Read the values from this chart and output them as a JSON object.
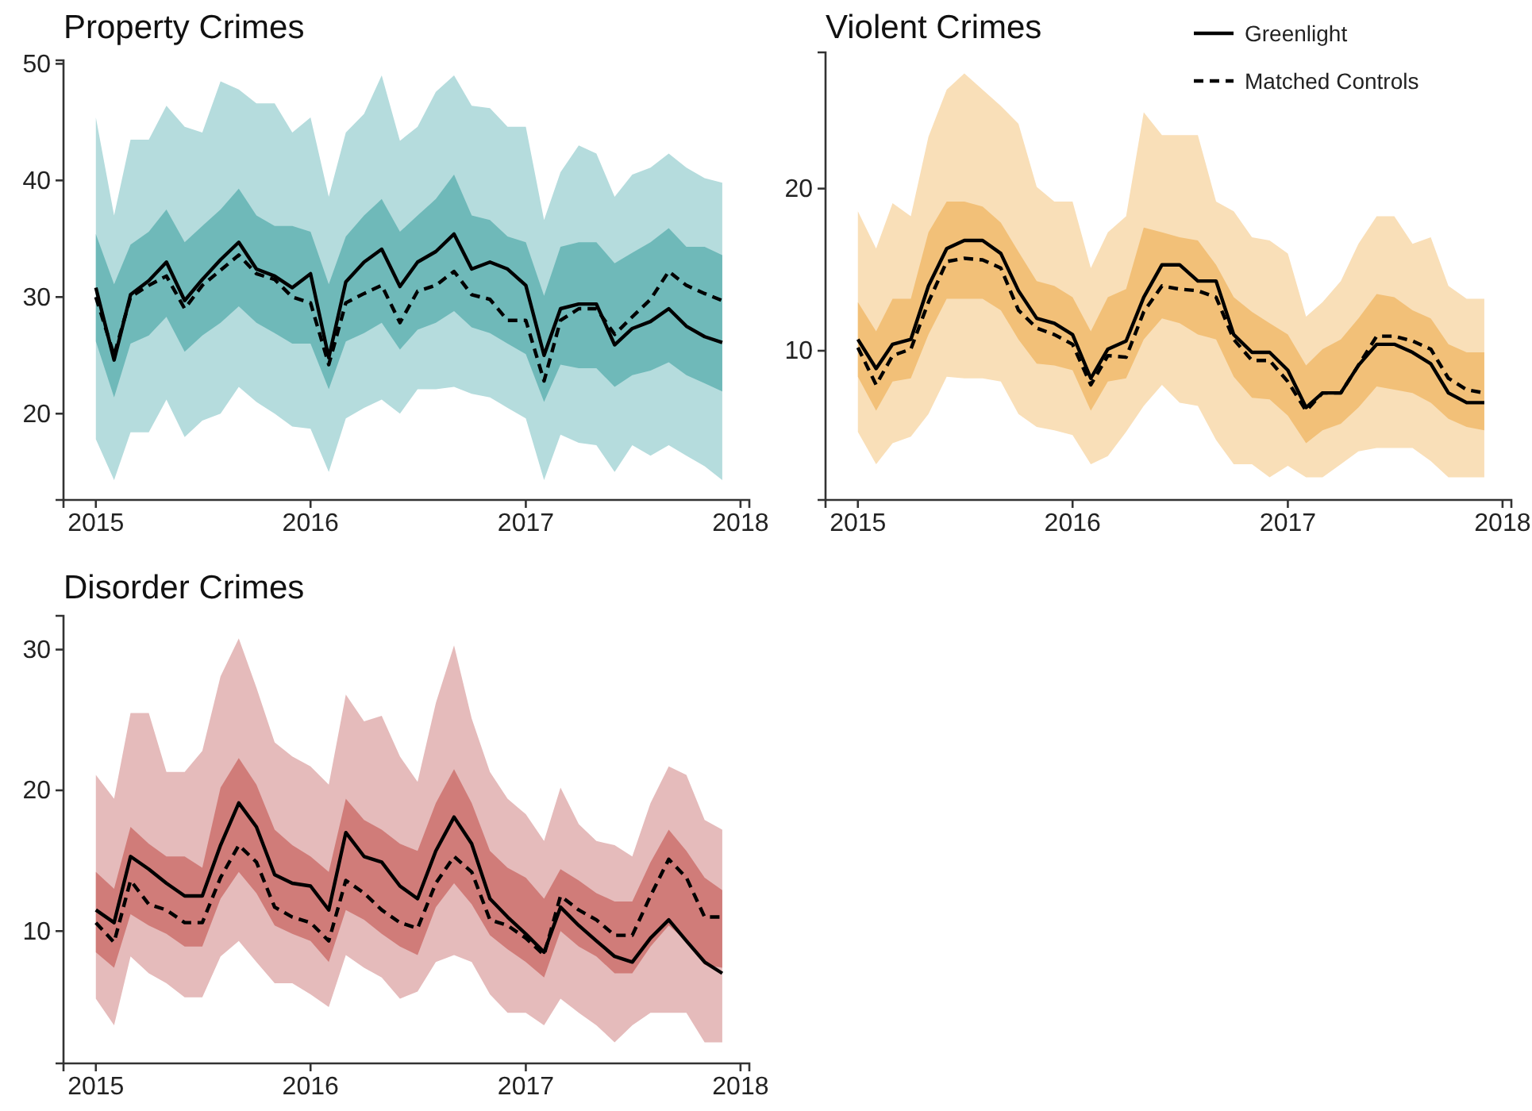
{
  "chart_data": [
    {
      "type": "line",
      "title": "Property Crimes",
      "x": [
        "2015-01",
        "2015-02",
        "2015-03",
        "2015-04",
        "2015-05",
        "2015-06",
        "2015-07",
        "2015-08",
        "2015-09",
        "2015-10",
        "2015-11",
        "2015-12",
        "2016-01",
        "2016-02",
        "2016-03",
        "2016-04",
        "2016-05",
        "2016-06",
        "2016-07",
        "2016-08",
        "2016-09",
        "2016-10",
        "2016-11",
        "2016-12",
        "2017-01",
        "2017-02",
        "2017-03",
        "2017-04",
        "2017-05",
        "2017-06",
        "2017-07",
        "2017-08",
        "2017-09",
        "2017-10",
        "2017-11",
        "2017-12"
      ],
      "xlim": [
        "2014-11-07",
        "2018-01-16"
      ],
      "xticks": [
        {
          "value": "2015",
          "label": "2015"
        },
        {
          "value": "2016",
          "label": "2016"
        },
        {
          "value": "2017",
          "label": "2017"
        },
        {
          "value": "2018",
          "label": "2018"
        }
      ],
      "colors": [
        "#b5dcdd",
        "#6fb9b9"
      ],
      "ylim": [
        12.6,
        50.3
      ],
      "yticks": [
        20,
        30,
        40,
        50
      ],
      "grid": false,
      "legend": false,
      "series": [
        {
          "type": "line",
          "color": "#000000",
          "line_style": "dashed",
          "values": [
            30.0,
            25.0,
            30.0,
            31.0,
            31.8,
            29.0,
            31.0,
            32.3,
            33.6,
            32.0,
            31.5,
            30.0,
            29.5,
            24.2,
            29.5,
            30.3,
            31.0,
            27.8,
            30.5,
            31.0,
            32.2,
            30.2,
            29.8,
            28.0,
            28.0,
            22.8,
            28.0,
            29.0,
            29.0,
            26.8,
            28.3,
            29.8,
            32.2,
            31.0,
            30.3,
            29.7
          ],
          "upper": [
            45.4,
            37.0,
            43.5,
            43.5,
            46.4,
            44.6,
            44.1,
            48.5,
            47.8,
            46.6,
            46.6,
            44.1,
            45.4,
            38.6,
            44.1,
            45.7,
            49.0,
            43.4,
            44.6,
            47.6,
            49.0,
            46.4,
            46.2,
            44.6,
            44.6,
            36.6,
            40.7,
            43.0,
            42.3,
            38.6,
            40.5,
            41.1,
            42.3,
            41.1,
            40.2,
            39.8
          ],
          "lower": [
            17.8,
            14.3,
            18.4,
            18.4,
            21.2,
            18.0,
            19.4,
            20.0,
            22.3,
            21.0,
            20.0,
            18.9,
            18.7,
            15.0,
            19.6,
            20.5,
            21.2,
            20.0,
            22.1,
            22.1,
            22.3,
            21.7,
            21.4,
            20.5,
            19.6,
            14.3,
            18.2,
            17.5,
            17.3,
            15.0,
            17.3,
            16.4,
            17.3,
            16.4,
            15.5,
            14.3
          ]
        },
        {
          "type": "line",
          "color": "#000000",
          "line_style": "solid",
          "values": [
            30.8,
            24.6,
            30.2,
            31.4,
            33.0,
            29.7,
            31.5,
            33.2,
            34.7,
            32.4,
            31.8,
            30.8,
            32.0,
            24.8,
            31.3,
            33.0,
            34.1,
            30.9,
            33.0,
            33.9,
            35.4,
            32.4,
            33.0,
            32.4,
            31.0,
            25.0,
            29.0,
            29.4,
            29.4,
            25.9,
            27.3,
            27.9,
            29.0,
            27.5,
            26.6,
            26.1
          ],
          "upper": [
            35.4,
            31.1,
            34.5,
            35.6,
            37.5,
            34.7,
            36.1,
            37.5,
            39.3,
            37.0,
            36.1,
            36.1,
            35.6,
            31.1,
            35.2,
            37.0,
            38.4,
            35.6,
            37.0,
            38.4,
            40.5,
            37.0,
            36.6,
            35.2,
            34.7,
            30.1,
            34.3,
            34.7,
            34.7,
            32.9,
            33.8,
            34.7,
            35.9,
            34.3,
            34.3,
            33.6
          ],
          "lower": [
            26.2,
            21.4,
            26.0,
            26.7,
            28.3,
            25.3,
            26.7,
            27.8,
            29.2,
            27.8,
            26.9,
            26.0,
            26.0,
            22.1,
            26.2,
            26.9,
            27.8,
            25.5,
            27.2,
            27.8,
            28.8,
            27.4,
            26.9,
            26.0,
            25.1,
            21.0,
            24.2,
            23.9,
            23.9,
            22.3,
            23.3,
            23.7,
            24.4,
            23.3,
            22.6,
            21.9
          ]
        }
      ]
    },
    {
      "type": "line",
      "title": "Violent Crimes",
      "x": [
        "2015-01",
        "2015-02",
        "2015-03",
        "2015-04",
        "2015-05",
        "2015-06",
        "2015-07",
        "2015-08",
        "2015-09",
        "2015-10",
        "2015-11",
        "2015-12",
        "2016-01",
        "2016-02",
        "2016-03",
        "2016-04",
        "2016-05",
        "2016-06",
        "2016-07",
        "2016-08",
        "2016-09",
        "2016-10",
        "2016-11",
        "2016-12",
        "2017-01",
        "2017-02",
        "2017-03",
        "2017-04",
        "2017-05",
        "2017-06",
        "2017-07",
        "2017-08",
        "2017-09",
        "2017-10",
        "2017-11",
        "2017-12"
      ],
      "xlim": [
        "2014-11-07",
        "2018-01-16"
      ],
      "xticks": [
        {
          "value": "2015",
          "label": "2015"
        },
        {
          "value": "2016",
          "label": "2016"
        },
        {
          "value": "2017",
          "label": "2017"
        },
        {
          "value": "2018",
          "label": "2018"
        }
      ],
      "colors": [
        "#f9dfb8",
        "#f2c078"
      ],
      "ylim": [
        0.8,
        28.4
      ],
      "yticks": [
        10,
        20
      ],
      "grid": false,
      "legend": "top right",
      "series": [
        {
          "name": "Matched Controls",
          "type": "line",
          "color": "#000000",
          "line_style": "dashed",
          "values": [
            10.2,
            7.9,
            9.7,
            10.1,
            13.0,
            15.5,
            15.7,
            15.6,
            15.1,
            12.5,
            11.4,
            11.0,
            10.4,
            7.9,
            9.7,
            9.6,
            12.4,
            14.0,
            13.8,
            13.7,
            13.3,
            10.7,
            9.4,
            9.4,
            8.1,
            6.3,
            7.4,
            7.4,
            9.1,
            10.9,
            10.9,
            10.6,
            10.1,
            8.3,
            7.6,
            7.4
          ],
          "upper": [
            18.6,
            16.3,
            19.1,
            18.3,
            23.2,
            26.1,
            27.1,
            26.1,
            25.1,
            24.0,
            20.1,
            19.2,
            19.2,
            15.1,
            17.3,
            18.3,
            24.7,
            23.3,
            23.3,
            23.3,
            19.2,
            18.6,
            17.0,
            16.8,
            16.0,
            12.1,
            13.0,
            14.3,
            16.6,
            18.3,
            18.3,
            16.6,
            17.0,
            14.0,
            13.2,
            13.2
          ],
          "lower": [
            5.0,
            3.0,
            4.3,
            4.7,
            6.1,
            8.4,
            8.3,
            8.3,
            8.1,
            6.1,
            5.3,
            5.1,
            4.8,
            3.0,
            3.5,
            5.0,
            6.6,
            7.9,
            6.8,
            6.6,
            4.5,
            3.0,
            3.0,
            2.2,
            2.9,
            2.2,
            2.2,
            3.0,
            3.8,
            4.0,
            4.0,
            4.0,
            3.2,
            2.2,
            2.2,
            2.2
          ]
        },
        {
          "name": "Greenlight",
          "type": "line",
          "color": "#000000",
          "line_style": "solid",
          "values": [
            10.7,
            8.9,
            10.4,
            10.7,
            14.0,
            16.3,
            16.8,
            16.8,
            16.0,
            13.7,
            12.0,
            11.7,
            11.0,
            8.3,
            10.1,
            10.6,
            13.3,
            15.3,
            15.3,
            14.3,
            14.3,
            11.0,
            9.9,
            9.9,
            8.8,
            6.5,
            7.4,
            7.4,
            9.1,
            10.4,
            10.4,
            9.9,
            9.2,
            7.4,
            6.8,
            6.8
          ],
          "upper": [
            13.0,
            11.2,
            13.2,
            13.2,
            17.3,
            19.2,
            19.2,
            18.9,
            17.9,
            16.1,
            14.3,
            14.0,
            13.3,
            11.2,
            13.3,
            13.8,
            17.6,
            17.3,
            17.0,
            16.8,
            15.3,
            13.3,
            12.4,
            11.7,
            11.0,
            9.1,
            10.1,
            10.7,
            12.0,
            13.5,
            13.3,
            12.5,
            12.0,
            10.4,
            9.9,
            9.9
          ],
          "lower": [
            8.4,
            6.3,
            8.1,
            8.3,
            11.0,
            13.2,
            13.2,
            13.2,
            12.5,
            10.7,
            9.2,
            9.1,
            8.8,
            6.3,
            8.1,
            8.3,
            10.7,
            12.0,
            11.7,
            11.0,
            10.7,
            8.4,
            7.1,
            7.0,
            6.0,
            4.3,
            5.1,
            5.5,
            6.5,
            7.8,
            7.6,
            7.4,
            6.8,
            5.8,
            5.3,
            5.1
          ]
        }
      ]
    },
    {
      "type": "line",
      "title": "Disorder Crimes",
      "x": [
        "2015-01",
        "2015-02",
        "2015-03",
        "2015-04",
        "2015-05",
        "2015-06",
        "2015-07",
        "2015-08",
        "2015-09",
        "2015-10",
        "2015-11",
        "2015-12",
        "2016-01",
        "2016-02",
        "2016-03",
        "2016-04",
        "2016-05",
        "2016-06",
        "2016-07",
        "2016-08",
        "2016-09",
        "2016-10",
        "2016-11",
        "2016-12",
        "2017-01",
        "2017-02",
        "2017-03",
        "2017-04",
        "2017-05",
        "2017-06",
        "2017-07",
        "2017-08",
        "2017-09",
        "2017-10",
        "2017-11",
        "2017-12"
      ],
      "xlim": [
        "2014-11-07",
        "2018-01-16"
      ],
      "xticks": [
        {
          "value": "2015",
          "label": "2015"
        },
        {
          "value": "2016",
          "label": "2016"
        },
        {
          "value": "2017",
          "label": "2017"
        },
        {
          "value": "2018",
          "label": "2018"
        }
      ],
      "colors": [
        "#e5bbbb",
        "#d07c79"
      ],
      "ylim": [
        0.6,
        32.4
      ],
      "yticks": [
        10,
        20,
        30
      ],
      "grid": false,
      "legend": false,
      "series": [
        {
          "type": "line",
          "color": "#000000",
          "line_style": "dashed",
          "values": [
            10.6,
            9.2,
            13.6,
            11.9,
            11.5,
            10.6,
            10.6,
            13.8,
            16.1,
            14.9,
            11.7,
            11.0,
            10.6,
            9.3,
            13.6,
            12.7,
            11.5,
            10.6,
            10.2,
            13.4,
            15.3,
            14.2,
            10.8,
            10.4,
            9.5,
            8.3,
            12.5,
            11.5,
            10.8,
            9.7,
            9.7,
            12.5,
            15.1,
            13.8,
            11.0,
            11.0
          ],
          "upper": [
            21.1,
            19.4,
            25.5,
            25.5,
            21.3,
            21.3,
            22.8,
            28.1,
            30.8,
            27.3,
            23.4,
            22.4,
            21.7,
            20.4,
            26.8,
            24.9,
            25.3,
            22.4,
            20.6,
            26.2,
            30.3,
            25.1,
            21.3,
            19.4,
            18.3,
            16.4,
            20.2,
            17.6,
            16.4,
            16.1,
            15.3,
            19.1,
            21.7,
            21.1,
            17.9,
            17.2
          ],
          "lower": [
            5.2,
            3.3,
            8.2,
            7.0,
            6.3,
            5.3,
            5.3,
            8.2,
            9.3,
            7.8,
            6.3,
            6.3,
            5.5,
            4.6,
            8.3,
            7.4,
            6.7,
            5.2,
            5.7,
            7.8,
            8.3,
            7.8,
            5.5,
            4.2,
            4.2,
            3.3,
            5.2,
            4.2,
            3.3,
            2.1,
            3.3,
            4.2,
            4.2,
            4.2,
            2.1,
            2.1
          ]
        },
        {
          "type": "line",
          "color": "#000000",
          "line_style": "solid",
          "values": [
            11.5,
            10.6,
            15.3,
            14.4,
            13.4,
            12.5,
            12.5,
            16.1,
            19.1,
            17.4,
            14.0,
            13.4,
            13.2,
            11.5,
            17.0,
            15.3,
            14.9,
            13.2,
            12.3,
            15.7,
            18.1,
            16.2,
            12.3,
            11.0,
            9.8,
            8.5,
            11.7,
            10.4,
            9.3,
            8.2,
            7.8,
            9.5,
            10.8,
            9.3,
            7.8,
            7.0
          ],
          "upper": [
            14.2,
            13.0,
            17.4,
            16.2,
            15.3,
            15.3,
            14.5,
            20.2,
            22.3,
            20.4,
            17.2,
            16.1,
            15.3,
            14.2,
            19.4,
            17.9,
            17.2,
            16.2,
            15.7,
            19.1,
            21.5,
            19.1,
            15.7,
            14.5,
            13.8,
            12.3,
            14.4,
            13.6,
            12.7,
            12.1,
            12.1,
            14.9,
            17.2,
            15.7,
            13.8,
            12.9
          ],
          "lower": [
            8.5,
            7.4,
            11.2,
            10.4,
            9.8,
            8.9,
            8.9,
            12.3,
            14.2,
            12.7,
            10.4,
            9.8,
            9.3,
            7.8,
            11.5,
            10.8,
            9.8,
            8.9,
            8.3,
            11.7,
            13.4,
            11.9,
            9.7,
            8.7,
            7.8,
            6.7,
            10.0,
            8.9,
            8.2,
            7.0,
            7.0,
            8.9,
            10.4,
            9.3,
            7.6,
            7.4
          ]
        }
      ]
    }
  ]
}
